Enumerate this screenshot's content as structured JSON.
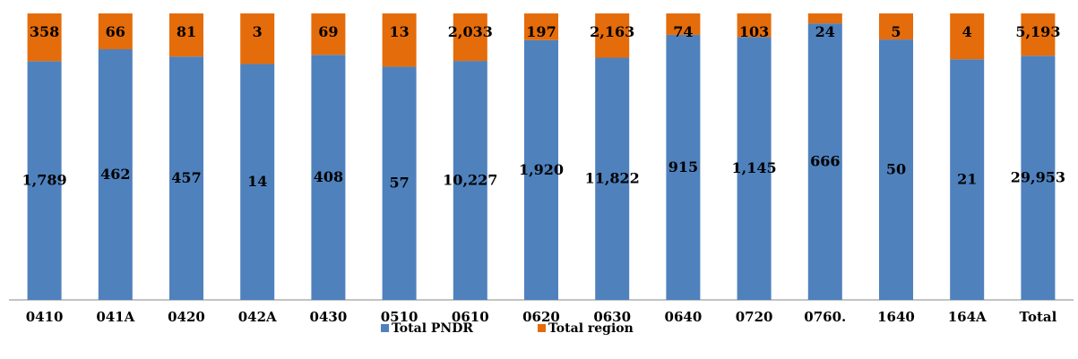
{
  "chart_data": {
    "type": "bar",
    "stacking": "percent",
    "title": "",
    "xlabel": "",
    "ylabel": "",
    "ylim": [
      0,
      1
    ],
    "grid": false,
    "legend_position": "bottom",
    "categories": [
      "0410",
      "041A",
      "0420",
      "042A",
      "0430",
      "0510",
      "0610",
      "0620",
      "0630",
      "0640",
      "0720",
      "0760.",
      "1640",
      "164A",
      "Total"
    ],
    "series": [
      {
        "name": "Total PNDR",
        "color": "#4F81BD",
        "values": [
          1789,
          462,
          457,
          14,
          408,
          57,
          10227,
          1920,
          11822,
          915,
          1145,
          666,
          50,
          21,
          29953
        ],
        "labels": [
          "1,789",
          "462",
          "457",
          "14",
          "408",
          "57",
          "10,227",
          "1,920",
          "11,822",
          "915",
          "1,145",
          "666",
          "50",
          "21",
          "29,953"
        ]
      },
      {
        "name": "Total region",
        "color": "#E46C0A",
        "values": [
          358,
          66,
          81,
          3,
          69,
          13,
          2033,
          197,
          2163,
          74,
          103,
          24,
          5,
          4,
          5193
        ],
        "labels": [
          "358",
          "66",
          "81",
          "3",
          "69",
          "13",
          "2,033",
          "197",
          "2,163",
          "74",
          "103",
          "24",
          "5",
          "4",
          "5,193"
        ]
      }
    ]
  }
}
